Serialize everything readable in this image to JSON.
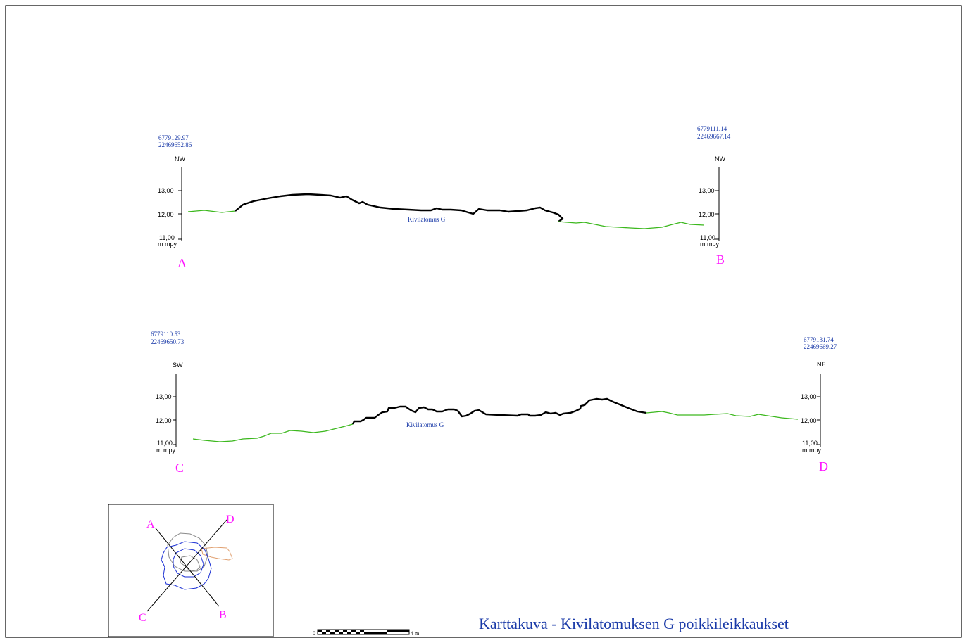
{
  "title": "Karttakuva - Kivilatomuksen G poikkileikkaukset",
  "profiles": [
    {
      "id": "A-B",
      "start_point": "A",
      "end_point": "B",
      "start_coord": [
        "6779129.97",
        "22469652.86"
      ],
      "end_coord": [
        "6779111.14",
        "22469667.14"
      ],
      "start_dir": "NW",
      "end_dir": "NW",
      "ticks": [
        "13,00",
        "12,00",
        "11,00"
      ],
      "unit": "m  mpy",
      "feature_label": "Kivilatomus G"
    },
    {
      "id": "C-D",
      "start_point": "C",
      "end_point": "D",
      "start_coord": [
        "6779110.53",
        "22469650.73"
      ],
      "end_coord": [
        "6779131.74",
        "22469669.27"
      ],
      "start_dir": "SW",
      "end_dir": "NE",
      "ticks": [
        "13,00",
        "12,00",
        "11,00"
      ],
      "unit": "m  mpy",
      "feature_label": "Kivilatomus G"
    }
  ],
  "key_map": {
    "labels": [
      "A",
      "B",
      "C",
      "D"
    ]
  },
  "scale_bar": {
    "start": "0",
    "end": "4 m"
  },
  "colors": {
    "frame": "#000000",
    "terrain": "#3cb81e",
    "stone_profile": "#000000",
    "coord_text": "#1a3aa8",
    "point_label": "#ff14ff",
    "outline_blue": "#1a2fd4",
    "outline_grey": "#8a8a8a",
    "outline_orange": "#e0a070"
  }
}
